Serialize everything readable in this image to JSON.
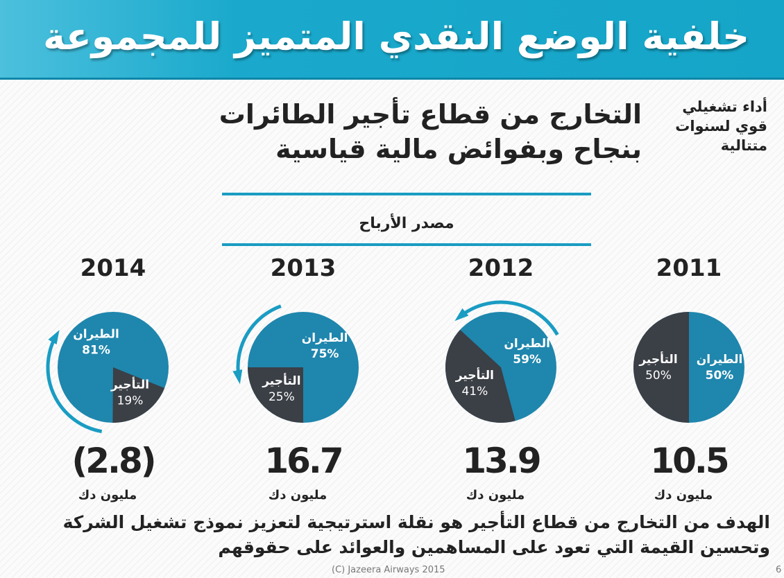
{
  "header": {
    "title": "خلفية الوضع النقدي المتميز للمجموعة"
  },
  "subtitle": "التخارج من قطاع تأجير الطائرات بنجاح وبفوائض مالية قياسية",
  "side_note": "أداء تشغيلي قوي لسنوات متتالية",
  "source_label": "مصدر الأرباح",
  "goal_text": "الهدف من التخارج من قطاع التأجير هو نقلة استرتيجية لتعزيز نموذج تشغيل الشركة وتحسين القيمة التي تعود على المساهمين والعوائد على حقوقهم",
  "footer": {
    "copyright": "(C) Jazeera Airways 2015",
    "page": "6"
  },
  "colors": {
    "aviation": "#1f86ad",
    "leasing": "#3b3f46",
    "header": "#1aa9cc",
    "accent": "#1a9cc3"
  },
  "chart_data": {
    "type": "pie",
    "title": "مصدر الأرباح",
    "unit": "مليون دك",
    "slice_labels": [
      "الطيران",
      "التأجير"
    ],
    "pies": [
      {
        "year": "2011",
        "aviation": 50,
        "leasing": 50,
        "profit": "10.5"
      },
      {
        "year": "2012",
        "aviation": 59,
        "leasing": 41,
        "profit": "13.9"
      },
      {
        "year": "2013",
        "aviation": 75,
        "leasing": 25,
        "profit": "16.7"
      },
      {
        "year": "2014",
        "aviation": 81,
        "leasing": 19,
        "profit": "(2.8)"
      }
    ]
  }
}
